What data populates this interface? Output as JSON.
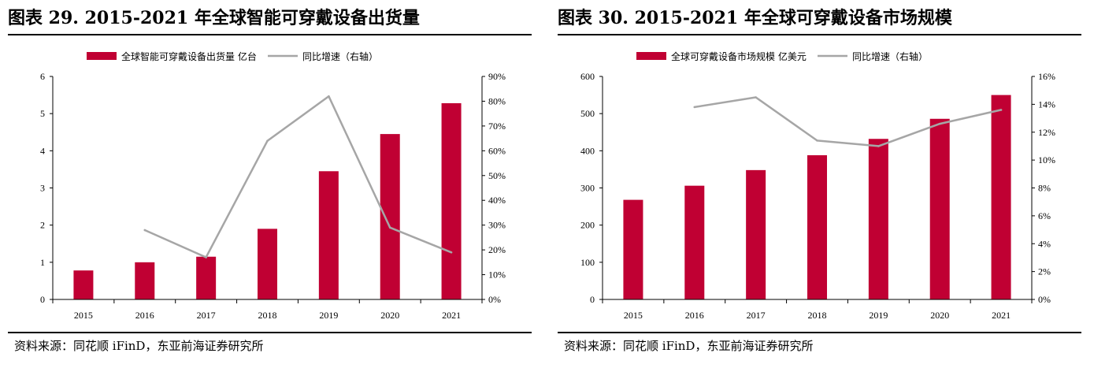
{
  "colors": {
    "bar": "#c00033",
    "line": "#a6a6a6",
    "axis": "#000000"
  },
  "left": {
    "title": "图表 29. 2015-2021 年全球智能可穿戴设备出货量",
    "source": "资料来源：同花顺 iFinD，东亚前海证券研究所"
  },
  "right": {
    "title": "图表 30. 2015-2021 年全球可穿戴设备市场规模",
    "source": "资料来源：同花顺 iFinD，东亚前海证券研究所"
  },
  "chart_data": [
    {
      "type": "bar",
      "title": "图表 29. 2015-2021 年全球智能可穿戴设备出货量",
      "categories": [
        "2015",
        "2016",
        "2017",
        "2018",
        "2019",
        "2020",
        "2021"
      ],
      "series": [
        {
          "name": "全球智能可穿戴设备出货量  亿台",
          "kind": "bar",
          "axis": "left",
          "values": [
            0.78,
            1.0,
            1.15,
            1.9,
            3.45,
            4.45,
            5.28
          ]
        },
        {
          "name": "同比增速（右轴）",
          "kind": "line",
          "axis": "right",
          "values": [
            null,
            0.28,
            0.17,
            0.64,
            0.82,
            0.29,
            0.19
          ]
        }
      ],
      "ylim": [
        0,
        6
      ],
      "yticks": [
        "0",
        "1",
        "2",
        "3",
        "4",
        "5",
        "6"
      ],
      "y2lim": [
        0,
        0.9
      ],
      "y2ticks": [
        "0%",
        "10%",
        "20%",
        "30%",
        "40%",
        "50%",
        "60%",
        "70%",
        "80%",
        "90%"
      ],
      "legend_position": "top-center",
      "grid": false
    },
    {
      "type": "bar",
      "title": "图表 30. 2015-2021 年全球可穿戴设备市场规模",
      "categories": [
        "2015",
        "2016",
        "2017",
        "2018",
        "2019",
        "2020",
        "2021"
      ],
      "series": [
        {
          "name": "全球可穿戴设备市场规模  亿美元",
          "kind": "bar",
          "axis": "left",
          "values": [
            268,
            306,
            348,
            388,
            432,
            486,
            550
          ]
        },
        {
          "name": "同比增速（右轴）",
          "kind": "line",
          "axis": "right",
          "values": [
            null,
            0.138,
            0.145,
            0.114,
            0.11,
            0.126,
            0.136
          ]
        }
      ],
      "ylim": [
        0,
        600
      ],
      "yticks": [
        "0",
        "100",
        "200",
        "300",
        "400",
        "500",
        "600"
      ],
      "y2lim": [
        0,
        0.16
      ],
      "y2ticks": [
        "0%",
        "2%",
        "4%",
        "6%",
        "8%",
        "10%",
        "12%",
        "14%",
        "16%"
      ],
      "legend_position": "top-center",
      "grid": false
    }
  ]
}
